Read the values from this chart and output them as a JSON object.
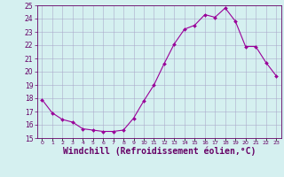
{
  "x": [
    0,
    1,
    2,
    3,
    4,
    5,
    6,
    7,
    8,
    9,
    10,
    11,
    12,
    13,
    14,
    15,
    16,
    17,
    18,
    19,
    20,
    21,
    22,
    23
  ],
  "y": [
    17.9,
    16.9,
    16.4,
    16.2,
    15.7,
    15.6,
    15.5,
    15.5,
    15.6,
    16.5,
    17.8,
    19.0,
    20.6,
    22.1,
    23.2,
    23.5,
    24.3,
    24.1,
    24.8,
    23.8,
    21.9,
    21.9,
    20.7,
    19.7
  ],
  "line_color": "#990099",
  "marker": "D",
  "marker_size": 2,
  "bg_color": "#d5f0f0",
  "grid_color": "#aaaacc",
  "ylim": [
    15,
    25
  ],
  "yticks": [
    15,
    16,
    17,
    18,
    19,
    20,
    21,
    22,
    23,
    24,
    25
  ],
  "xtick_labels": [
    "0",
    "1",
    "2",
    "3",
    "4",
    "5",
    "6",
    "7",
    "8",
    "9",
    "10",
    "11",
    "12",
    "13",
    "14",
    "15",
    "16",
    "17",
    "18",
    "19",
    "20",
    "21",
    "22",
    "23"
  ],
  "xlabel": "Windchill (Refroidissement éolien,°C)",
  "xlabel_fontsize": 7,
  "tick_color": "#660066",
  "spine_color": "#660066"
}
